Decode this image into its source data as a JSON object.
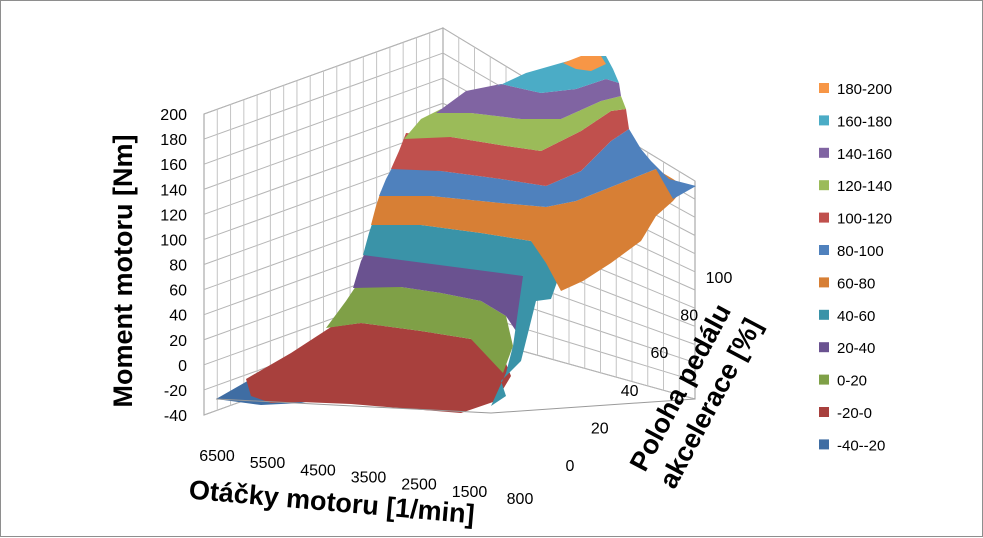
{
  "chart_data": {
    "type": "surface",
    "zlabel": "Moment motoru [Nm]",
    "xlabel": "Otáčky motoru [1/min]",
    "ylabel": "Poloha pedálu akcelerace [%]",
    "zlim": [
      -40,
      200
    ],
    "z_ticks": [
      "200",
      "180",
      "160",
      "140",
      "120",
      "100",
      "80",
      "60",
      "40",
      "20",
      "0",
      "-20",
      "-40"
    ],
    "x_ticks": [
      "6500",
      "5500",
      "4500",
      "3500",
      "2500",
      "1500",
      "800"
    ],
    "y_ticks": [
      "0",
      "20",
      "40",
      "60",
      "80",
      "100"
    ],
    "grid": true,
    "legend_position": "right",
    "bands": [
      {
        "label": "180-200",
        "color": "#F79646"
      },
      {
        "label": "160-180",
        "color": "#4BACC6"
      },
      {
        "label": "140-160",
        "color": "#8064A2"
      },
      {
        "label": "120-140",
        "color": "#9BBB59"
      },
      {
        "label": "100-120",
        "color": "#C0504D"
      },
      {
        "label": "80-100",
        "color": "#4F81BD"
      },
      {
        "label": "60-80",
        "color": "#D77F35"
      },
      {
        "label": "40-60",
        "color": "#3A93A8"
      },
      {
        "label": "20-40",
        "color": "#6A5290"
      },
      {
        "label": "0-20",
        "color": "#7FA047"
      },
      {
        "label": "-20-0",
        "color": "#A8403D"
      },
      {
        "label": "-40--20",
        "color": "#3F6DA3"
      }
    ]
  }
}
